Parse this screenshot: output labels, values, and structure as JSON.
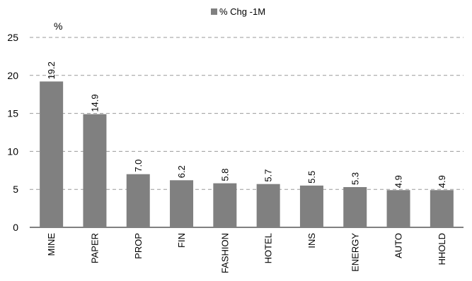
{
  "chart_data": {
    "type": "bar",
    "categories": [
      "MINE",
      "PAPER",
      "PROP",
      "FIN",
      "FASHION",
      "HOTEL",
      "INS",
      "ENERGY",
      "AUTO",
      "HHOLD"
    ],
    "series": [
      {
        "name": "% Chg -1M",
        "values": [
          19.2,
          14.9,
          7.0,
          6.2,
          5.8,
          5.7,
          5.5,
          5.3,
          4.9,
          4.9
        ],
        "data_labels": [
          "19.2",
          "14.9",
          "7.0",
          "6.2",
          "5.8",
          "5.7",
          "5.5",
          "5.3",
          "4.9",
          "4.9"
        ]
      }
    ],
    "unit_label": "%",
    "ylim": [
      0,
      25
    ],
    "yticks": [
      0,
      5,
      10,
      15,
      20,
      25
    ],
    "grid": "horizontal-dashed",
    "legend_position": "top-center",
    "bar_color": "#808080",
    "grid_color": "#999999",
    "text_color": "#000000"
  }
}
